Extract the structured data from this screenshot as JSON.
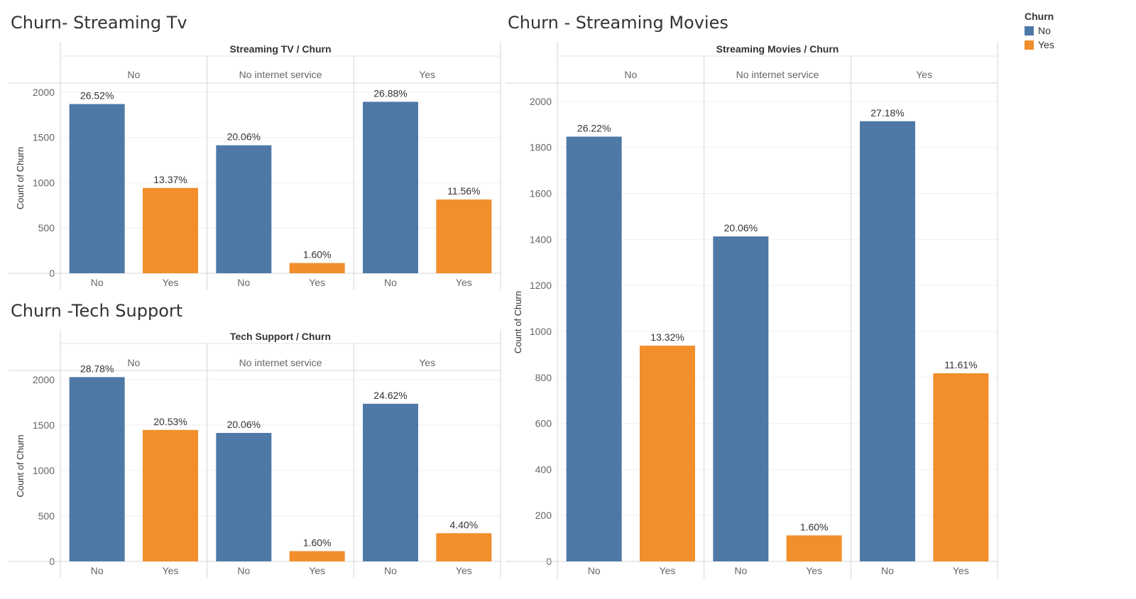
{
  "legend": {
    "title": "Churn",
    "items": [
      {
        "label": "No",
        "color": "#4e79a7"
      },
      {
        "label": "Yes",
        "color": "#f28e2b"
      }
    ]
  },
  "chart_data": [
    {
      "type": "bar",
      "title": "Churn- Streaming Tv",
      "header": "Streaming TV / Churn",
      "ylabel": "Count of Churn",
      "ylim": [
        0,
        2100
      ],
      "yticks": [
        0,
        500,
        1000,
        1500,
        2000
      ],
      "groups": [
        {
          "label": "No",
          "bars": [
            {
              "category": "No",
              "value": 1868,
              "label": "26.52%"
            },
            {
              "category": "Yes",
              "value": 942,
              "label": "13.37%"
            }
          ]
        },
        {
          "label": "No internet service",
          "bars": [
            {
              "category": "No",
              "value": 1413,
              "label": "20.06%"
            },
            {
              "category": "Yes",
              "value": 113,
              "label": "1.60%"
            }
          ]
        },
        {
          "label": "Yes",
          "bars": [
            {
              "category": "No",
              "value": 1893,
              "label": "26.88%"
            },
            {
              "category": "Yes",
              "value": 814,
              "label": "11.56%"
            }
          ]
        }
      ]
    },
    {
      "type": "bar",
      "title": "Churn -Tech Support",
      "header": "Tech Support / Churn",
      "ylabel": "Count of Churn",
      "ylim": [
        0,
        2100
      ],
      "yticks": [
        0,
        500,
        1000,
        1500,
        2000
      ],
      "groups": [
        {
          "label": "No",
          "bars": [
            {
              "category": "No",
              "value": 2027,
              "label": "28.78%"
            },
            {
              "category": "Yes",
              "value": 1446,
              "label": "20.53%"
            }
          ]
        },
        {
          "label": "No internet service",
          "bars": [
            {
              "category": "No",
              "value": 1413,
              "label": "20.06%"
            },
            {
              "category": "Yes",
              "value": 113,
              "label": "1.60%"
            }
          ]
        },
        {
          "label": "Yes",
          "bars": [
            {
              "category": "No",
              "value": 1734,
              "label": "24.62%"
            },
            {
              "category": "Yes",
              "value": 310,
              "label": "4.40%"
            }
          ]
        }
      ]
    },
    {
      "type": "bar",
      "title": "Churn - Streaming Movies",
      "header": "Streaming Movies / Churn",
      "ylabel": "Count of Churn",
      "ylim": [
        0,
        2080
      ],
      "yticks": [
        0,
        200,
        400,
        600,
        800,
        1000,
        1200,
        1400,
        1600,
        1800,
        2000
      ],
      "groups": [
        {
          "label": "No",
          "bars": [
            {
              "category": "No",
              "value": 1847,
              "label": "26.22%"
            },
            {
              "category": "Yes",
              "value": 938,
              "label": "13.32%"
            }
          ]
        },
        {
          "label": "No internet service",
          "bars": [
            {
              "category": "No",
              "value": 1413,
              "label": "20.06%"
            },
            {
              "category": "Yes",
              "value": 113,
              "label": "1.60%"
            }
          ]
        },
        {
          "label": "Yes",
          "bars": [
            {
              "category": "No",
              "value": 1914,
              "label": "27.18%"
            },
            {
              "category": "Yes",
              "value": 818,
              "label": "11.61%"
            }
          ]
        }
      ]
    }
  ]
}
